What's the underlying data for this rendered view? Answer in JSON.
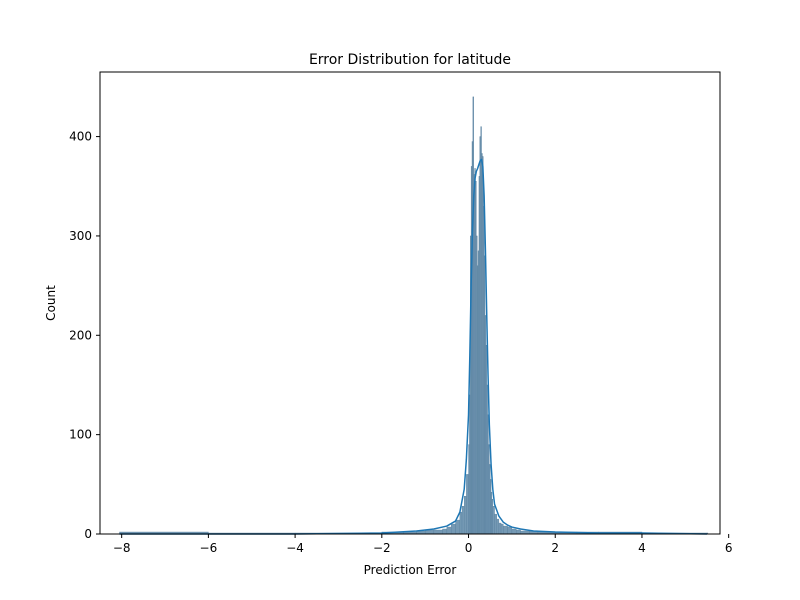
{
  "chart_data": {
    "type": "bar",
    "subtype": "histogram-with-kde",
    "title": "Error Distribution for latitude",
    "xlabel": "Prediction Error",
    "ylabel": "Count",
    "xlim": [
      -8.5,
      5.8
    ],
    "ylim": [
      0,
      465
    ],
    "xticks": [
      -8,
      -6,
      -4,
      -2,
      0,
      2,
      4,
      6
    ],
    "yticks": [
      0,
      100,
      200,
      300,
      400
    ],
    "grid": false,
    "legend": "none",
    "bar_color": "#6e94b0",
    "bar_edge_color": "#5a82a0",
    "kde_color": "#1f77b4",
    "bins": {
      "x": [
        -8.05,
        -6.0,
        -4.0,
        -2.0,
        -1.5,
        -1.2,
        -1.0,
        -0.8,
        -0.6,
        -0.5,
        -0.4,
        -0.3,
        -0.2,
        -0.15,
        -0.1,
        -0.05,
        0.0,
        0.02,
        0.04,
        0.06,
        0.08,
        0.1,
        0.12,
        0.14,
        0.16,
        0.18,
        0.2,
        0.22,
        0.24,
        0.26,
        0.28,
        0.3,
        0.32,
        0.34,
        0.36,
        0.38,
        0.4,
        0.42,
        0.44,
        0.46,
        0.48,
        0.5,
        0.52,
        0.54,
        0.56,
        0.6,
        0.65,
        0.7,
        0.75,
        0.8,
        0.9,
        1.0,
        1.1,
        1.2,
        1.4,
        1.6,
        2.0,
        2.5,
        3.0,
        4.0,
        5.5
      ],
      "counts": [
        2,
        1,
        1,
        2,
        2,
        3,
        4,
        4,
        5,
        7,
        10,
        14,
        22,
        28,
        38,
        60,
        90,
        140,
        300,
        370,
        395,
        440,
        362,
        368,
        355,
        300,
        270,
        285,
        360,
        400,
        410,
        383,
        380,
        330,
        280,
        220,
        190,
        150,
        120,
        90,
        70,
        55,
        42,
        35,
        28,
        20,
        15,
        11,
        10,
        8,
        7,
        5,
        4,
        3,
        3,
        2,
        2,
        2,
        2,
        1,
        1
      ]
    },
    "kde": {
      "x": [
        -8.05,
        -6.0,
        -4.0,
        -2.0,
        -1.2,
        -0.8,
        -0.5,
        -0.3,
        -0.2,
        -0.1,
        -0.05,
        0.0,
        0.03,
        0.06,
        0.09,
        0.12,
        0.15,
        0.18,
        0.21,
        0.24,
        0.27,
        0.3,
        0.33,
        0.36,
        0.39,
        0.42,
        0.45,
        0.48,
        0.52,
        0.56,
        0.6,
        0.7,
        0.8,
        0.9,
        1.0,
        1.2,
        1.5,
        2.0,
        3.0,
        4.0,
        5.5
      ],
      "y": [
        0,
        0,
        0,
        1,
        3,
        5,
        8,
        13,
        22,
        45,
        75,
        120,
        180,
        250,
        305,
        340,
        358,
        365,
        368,
        372,
        376,
        377,
        370,
        340,
        285,
        220,
        160,
        110,
        70,
        45,
        30,
        18,
        12,
        9,
        7,
        5,
        3,
        2,
        1,
        1,
        0
      ]
    }
  }
}
